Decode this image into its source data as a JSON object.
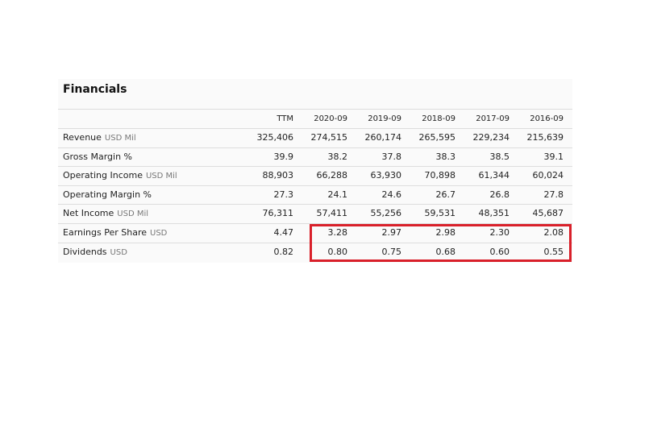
{
  "financials": {
    "title": "Financials",
    "columns": [
      "TTM",
      "2020-09",
      "2019-09",
      "2018-09",
      "2017-09",
      "2016-09"
    ],
    "rows": [
      {
        "label": "Revenue",
        "unit": "USD Mil",
        "values": [
          "325,406",
          "274,515",
          "260,174",
          "265,595",
          "229,234",
          "215,639"
        ]
      },
      {
        "label": "Gross Margin %",
        "values": [
          "39.9",
          "38.2",
          "37.8",
          "38.3",
          "38.5",
          "39.1"
        ]
      },
      {
        "label": "Operating Income",
        "unit": "USD Mil",
        "values": [
          "88,903",
          "66,288",
          "63,930",
          "70,898",
          "61,344",
          "60,024"
        ]
      },
      {
        "label": "Operating Margin %",
        "values": [
          "27.3",
          "24.1",
          "24.6",
          "26.7",
          "26.8",
          "27.8"
        ]
      },
      {
        "label": "Net Income",
        "unit": "USD Mil",
        "values": [
          "76,311",
          "57,411",
          "55,256",
          "59,531",
          "48,351",
          "45,687"
        ]
      },
      {
        "label": "Earnings Per Share",
        "unit": "USD",
        "values": [
          "4.47",
          "3.28",
          "2.97",
          "2.98",
          "2.30",
          "2.08"
        ]
      },
      {
        "label": "Dividends",
        "unit": "USD",
        "values": [
          "0.82",
          "0.80",
          "0.75",
          "0.68",
          "0.60",
          "0.55"
        ]
      }
    ]
  }
}
